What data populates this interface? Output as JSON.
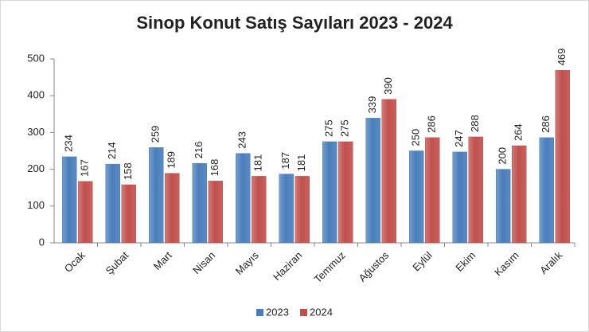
{
  "chart_data": {
    "type": "bar",
    "title": "Sinop Konut Satış Sayıları  2023 - 2024",
    "categories": [
      "Ocak",
      "Şubat",
      "Mart",
      "Nisan",
      "Mayıs",
      "Haziran",
      "Temmuz",
      "Ağustos",
      "Eylül",
      "Ekim",
      "Kasım",
      "Aralık"
    ],
    "series": [
      {
        "name": "2023",
        "color": "#4a7ebb",
        "values": [
          234,
          214,
          259,
          216,
          243,
          187,
          275,
          339,
          250,
          247,
          200,
          286
        ]
      },
      {
        "name": "2024",
        "color": "#c0504d",
        "values": [
          167,
          158,
          189,
          168,
          181,
          181,
          275,
          390,
          286,
          288,
          264,
          469
        ]
      }
    ],
    "ylim": [
      0,
      500
    ],
    "yticks": [
      0,
      100,
      200,
      300,
      400,
      500
    ],
    "grid": false,
    "legend": "bottom"
  }
}
